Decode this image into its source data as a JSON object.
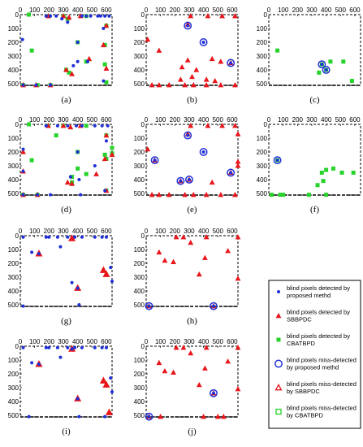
{
  "panels": [
    {
      "label": "(a)",
      "blue_dots": [
        [
          180,
          10
        ],
        [
          210,
          10
        ],
        [
          250,
          10
        ],
        [
          430,
          10
        ],
        [
          460,
          10
        ],
        [
          490,
          10
        ],
        [
          540,
          10
        ],
        [
          560,
          10
        ],
        [
          590,
          10
        ],
        [
          620,
          10
        ],
        [
          290,
          30
        ],
        [
          330,
          55
        ],
        [
          400,
          200
        ],
        [
          580,
          100
        ],
        [
          15,
          180
        ],
        [
          370,
          370
        ],
        [
          400,
          340
        ],
        [
          470,
          340
        ],
        [
          20,
          510
        ],
        [
          110,
          510
        ],
        [
          210,
          510
        ],
        [
          580,
          480
        ]
      ],
      "red_triangles": [
        [
          195,
          10
        ],
        [
          300,
          10
        ],
        [
          340,
          20
        ],
        [
          420,
          10
        ],
        [
          600,
          80
        ],
        [
          580,
          220
        ],
        [
          320,
          400
        ],
        [
          360,
          430
        ],
        [
          600,
          390
        ],
        [
          480,
          320
        ],
        [
          20,
          510
        ],
        [
          110,
          510
        ],
        [
          210,
          510
        ]
      ],
      "green_squares": [
        [
          60,
          0
        ],
        [
          195,
          10
        ],
        [
          300,
          10
        ],
        [
          330,
          30
        ],
        [
          460,
          10
        ],
        [
          600,
          80
        ],
        [
          400,
          200
        ],
        [
          590,
          220
        ],
        [
          80,
          260
        ],
        [
          460,
          340
        ],
        [
          590,
          360
        ],
        [
          320,
          400
        ],
        [
          340,
          420
        ],
        [
          600,
          490
        ],
        [
          20,
          510
        ],
        [
          120,
          510
        ],
        [
          210,
          510
        ]
      ],
      "blue_circles": [],
      "red_open_triangles": [],
      "green_open_squares": []
    },
    {
      "label": "(b)",
      "blue_dots": [
        [
          290,
          80
        ],
        [
          400,
          200
        ],
        [
          590,
          350
        ]
      ],
      "red_triangles": [
        [
          310,
          10
        ],
        [
          430,
          10
        ],
        [
          530,
          10
        ],
        [
          620,
          10
        ],
        [
          290,
          70
        ],
        [
          10,
          180
        ],
        [
          90,
          260
        ],
        [
          40,
          510
        ],
        [
          90,
          510
        ],
        [
          160,
          510
        ],
        [
          270,
          510
        ],
        [
          330,
          510
        ],
        [
          420,
          510
        ],
        [
          520,
          510
        ],
        [
          620,
          510
        ],
        [
          250,
          380
        ],
        [
          290,
          330
        ],
        [
          350,
          400
        ],
        [
          460,
          320
        ],
        [
          520,
          340
        ],
        [
          590,
          350
        ],
        [
          240,
          470
        ],
        [
          320,
          450
        ],
        [
          420,
          470
        ],
        [
          480,
          480
        ]
      ],
      "green_squares": [],
      "blue_circles": [
        [
          290,
          80
        ],
        [
          400,
          200
        ],
        [
          590,
          350
        ]
      ],
      "red_open_triangles": [],
      "green_open_squares": []
    },
    {
      "label": "(c)",
      "blue_dots": [
        [
          370,
          360
        ],
        [
          400,
          400
        ]
      ],
      "red_triangles": [],
      "green_squares": [
        [
          60,
          260
        ],
        [
          350,
          420
        ],
        [
          370,
          360
        ],
        [
          400,
          400
        ],
        [
          430,
          340
        ],
        [
          520,
          340
        ],
        [
          580,
          480
        ]
      ],
      "blue_circles": [
        [
          370,
          360
        ],
        [
          400,
          400
        ]
      ],
      "red_open_triangles": [],
      "green_open_squares": []
    },
    {
      "label": "(d)",
      "blue_dots": [
        [
          180,
          10
        ],
        [
          260,
          10
        ],
        [
          330,
          10
        ],
        [
          390,
          10
        ],
        [
          430,
          10
        ],
        [
          520,
          10
        ],
        [
          570,
          10
        ],
        [
          610,
          10
        ],
        [
          20,
          180
        ],
        [
          400,
          200
        ],
        [
          600,
          120
        ],
        [
          20,
          340
        ],
        [
          350,
          380
        ],
        [
          410,
          400
        ],
        [
          520,
          300
        ],
        [
          20,
          510
        ],
        [
          120,
          510
        ],
        [
          210,
          510
        ],
        [
          420,
          510
        ],
        [
          590,
          480
        ]
      ],
      "red_triangles": [
        [
          195,
          10
        ],
        [
          300,
          10
        ],
        [
          350,
          20
        ],
        [
          420,
          10
        ],
        [
          600,
          80
        ],
        [
          640,
          220
        ],
        [
          330,
          420
        ],
        [
          360,
          430
        ],
        [
          600,
          480
        ],
        [
          530,
          360
        ],
        [
          590,
          250
        ],
        [
          20,
          200
        ],
        [
          20,
          340
        ],
        [
          20,
          510
        ],
        [
          120,
          510
        ]
      ],
      "green_squares": [
        [
          60,
          0
        ],
        [
          195,
          10
        ],
        [
          300,
          10
        ],
        [
          250,
          80
        ],
        [
          460,
          10
        ],
        [
          600,
          80
        ],
        [
          400,
          200
        ],
        [
          590,
          220
        ],
        [
          80,
          260
        ],
        [
          460,
          360
        ],
        [
          360,
          380
        ],
        [
          360,
          420
        ],
        [
          400,
          320
        ],
        [
          600,
          480
        ],
        [
          20,
          510
        ],
        [
          120,
          510
        ],
        [
          640,
          170
        ],
        [
          640,
          210
        ],
        [
          600,
          250
        ]
      ],
      "blue_circles": [],
      "red_open_triangles": [],
      "green_open_squares": []
    },
    {
      "label": "(e)",
      "blue_dots": [
        [
          290,
          80
        ],
        [
          400,
          200
        ],
        [
          60,
          260
        ],
        [
          240,
          410
        ],
        [
          300,
          400
        ],
        [
          590,
          350
        ]
      ],
      "red_triangles": [
        [
          310,
          10
        ],
        [
          430,
          10
        ],
        [
          530,
          10
        ],
        [
          620,
          10
        ],
        [
          290,
          70
        ],
        [
          10,
          180
        ],
        [
          60,
          260
        ],
        [
          640,
          270
        ],
        [
          240,
          410
        ],
        [
          300,
          400
        ],
        [
          40,
          510
        ],
        [
          90,
          510
        ],
        [
          160,
          510
        ],
        [
          270,
          510
        ],
        [
          330,
          510
        ],
        [
          420,
          510
        ],
        [
          520,
          510
        ],
        [
          620,
          510
        ],
        [
          640,
          70
        ],
        [
          640,
          300
        ],
        [
          590,
          350
        ],
        [
          460,
          420
        ]
      ],
      "green_squares": [],
      "blue_circles": [
        [
          290,
          80
        ],
        [
          400,
          200
        ],
        [
          60,
          260
        ],
        [
          240,
          410
        ],
        [
          300,
          400
        ],
        [
          590,
          350
        ]
      ],
      "red_open_triangles": [],
      "green_open_squares": []
    },
    {
      "label": "(f)",
      "blue_dots": [
        [
          60,
          260
        ]
      ],
      "red_triangles": [],
      "green_squares": [
        [
          60,
          260
        ],
        [
          370,
          350
        ],
        [
          380,
          410
        ],
        [
          400,
          330
        ],
        [
          450,
          320
        ],
        [
          510,
          350
        ],
        [
          590,
          350
        ],
        [
          340,
          440
        ],
        [
          20,
          510
        ],
        [
          80,
          510
        ],
        [
          100,
          510
        ],
        [
          280,
          510
        ],
        [
          400,
          510
        ]
      ],
      "blue_circles": [
        [
          60,
          260
        ]
      ],
      "red_open_triangles": [],
      "green_open_squares": []
    },
    {
      "label": "(g)",
      "blue_dots": [
        [
          20,
          10
        ],
        [
          180,
          10
        ],
        [
          200,
          10
        ],
        [
          260,
          10
        ],
        [
          330,
          10
        ],
        [
          380,
          10
        ],
        [
          430,
          10
        ],
        [
          520,
          10
        ],
        [
          570,
          10
        ],
        [
          600,
          10
        ],
        [
          80,
          120
        ],
        [
          130,
          130
        ],
        [
          280,
          80
        ],
        [
          360,
          340
        ],
        [
          400,
          380
        ],
        [
          640,
          330
        ],
        [
          630,
          230
        ],
        [
          20,
          510
        ],
        [
          410,
          500
        ]
      ],
      "red_triangles": [
        [
          130,
          130
        ],
        [
          360,
          20
        ],
        [
          400,
          380
        ],
        [
          580,
          250
        ],
        [
          600,
          280
        ]
      ],
      "green_squares": [],
      "blue_circles": [],
      "red_open_triangles": [
        [
          130,
          130
        ],
        [
          360,
          20
        ],
        [
          400,
          380
        ],
        [
          580,
          250
        ],
        [
          600,
          280
        ]
      ],
      "green_open_squares": []
    },
    {
      "label": "(h)",
      "blue_dots": [
        [
          20,
          510
        ],
        [
          470,
          510
        ]
      ],
      "red_triangles": [
        [
          210,
          10
        ],
        [
          90,
          120
        ],
        [
          130,
          180
        ],
        [
          190,
          190
        ],
        [
          310,
          50
        ],
        [
          260,
          10
        ],
        [
          420,
          10
        ],
        [
          640,
          10
        ],
        [
          370,
          280
        ],
        [
          410,
          160
        ],
        [
          570,
          110
        ],
        [
          640,
          310
        ],
        [
          20,
          510
        ],
        [
          470,
          510
        ]
      ],
      "green_squares": [],
      "blue_circles": [
        [
          20,
          510
        ],
        [
          470,
          510
        ]
      ],
      "red_open_triangles": [],
      "green_open_squares": []
    },
    {
      "label": "(i)",
      "blue_dots": [
        [
          20,
          10
        ],
        [
          180,
          10
        ],
        [
          200,
          10
        ],
        [
          260,
          10
        ],
        [
          330,
          10
        ],
        [
          380,
          10
        ],
        [
          430,
          10
        ],
        [
          520,
          10
        ],
        [
          570,
          10
        ],
        [
          600,
          10
        ],
        [
          80,
          120
        ],
        [
          130,
          130
        ],
        [
          280,
          80
        ],
        [
          360,
          20
        ],
        [
          400,
          380
        ],
        [
          640,
          330
        ],
        [
          630,
          230
        ],
        [
          60,
          510
        ],
        [
          410,
          510
        ],
        [
          590,
          510
        ]
      ],
      "red_triangles": [
        [
          130,
          130
        ],
        [
          360,
          20
        ],
        [
          400,
          380
        ],
        [
          580,
          250
        ],
        [
          600,
          280
        ],
        [
          620,
          480
        ]
      ],
      "green_squares": [],
      "blue_circles": [],
      "red_open_triangles": [
        [
          130,
          130
        ],
        [
          360,
          20
        ],
        [
          400,
          380
        ],
        [
          580,
          250
        ],
        [
          600,
          280
        ],
        [
          620,
          480
        ]
      ],
      "green_open_squares": []
    },
    {
      "label": "(j)",
      "blue_dots": [
        [
          20,
          510
        ],
        [
          470,
          340
        ]
      ],
      "red_triangles": [
        [
          210,
          10
        ],
        [
          90,
          120
        ],
        [
          130,
          180
        ],
        [
          190,
          190
        ],
        [
          310,
          50
        ],
        [
          260,
          10
        ],
        [
          420,
          10
        ],
        [
          640,
          10
        ],
        [
          370,
          280
        ],
        [
          410,
          160
        ],
        [
          570,
          110
        ],
        [
          640,
          310
        ],
        [
          20,
          510
        ],
        [
          470,
          340
        ],
        [
          400,
          510
        ],
        [
          500,
          510
        ],
        [
          540,
          510
        ],
        [
          100,
          510
        ]
      ],
      "green_squares": [],
      "blue_circles": [
        [
          20,
          510
        ],
        [
          470,
          340
        ]
      ],
      "red_open_triangles": [],
      "green_open_squares": []
    }
  ],
  "chart_data": {
    "type": "scatter",
    "x_ticks": [
      "0",
      "100",
      "200",
      "300",
      "400",
      "500",
      "600"
    ],
    "y_ticks": [
      "0",
      "100",
      "200",
      "300",
      "400",
      "500"
    ],
    "xlim": [
      0,
      640
    ],
    "ylim": [
      512,
      0
    ],
    "legend_entries": [
      {
        "key": "blue_dot",
        "text_lines": [
          "blind pixels detected by",
          "proposed methd"
        ]
      },
      {
        "key": "red_triangle",
        "text_lines": [
          "blind pixels detected by",
          "SBBPDC"
        ]
      },
      {
        "key": "green_square",
        "text_lines": [
          "blind pixels detected by",
          "CBATBPD"
        ]
      },
      {
        "key": "blue_circle",
        "text_lines": [
          "blind pixels miss-detected",
          "by proposed methd"
        ]
      },
      {
        "key": "red_open_triangle",
        "text_lines": [
          "blind pixels miss-detected",
          "by SBBPDC"
        ]
      },
      {
        "key": "green_open_square",
        "text_lines": [
          "blind pixels miss-detected",
          "by CBATBPD"
        ]
      }
    ]
  },
  "colors": {
    "blue": "#1f2fd6",
    "red": "#e8161b",
    "green": "#27d22b",
    "border": "#000000"
  }
}
